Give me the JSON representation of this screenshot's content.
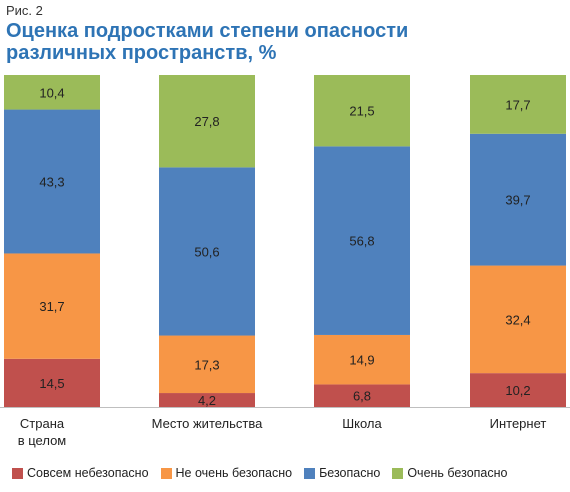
{
  "figure_label": "Рис. 2",
  "title": "Оценка подростками степени опасности различных пространств, %",
  "chart_data": {
    "type": "bar",
    "stacked": true,
    "percent_stacked": true,
    "categories": [
      "Страна в целом",
      "Место жительства",
      "Школа",
      "Интернет"
    ],
    "series": [
      {
        "name": "Совсем небезопасно",
        "color": "#c0504d",
        "values": [
          14.5,
          4.2,
          6.8,
          10.2
        ]
      },
      {
        "name": "Не очень безопасно",
        "color": "#f79646",
        "values": [
          31.7,
          17.3,
          14.9,
          32.4
        ]
      },
      {
        "name": "Безопасно",
        "color": "#4f81bd",
        "values": [
          43.3,
          50.6,
          56.8,
          39.7
        ]
      },
      {
        "name": "Очень безопасно",
        "color": "#9bbb59",
        "values": [
          10.4,
          27.8,
          21.5,
          17.7
        ]
      }
    ],
    "value_labels": [
      [
        "14,5",
        "4,2",
        "6,8",
        "10,2"
      ],
      [
        "31,7",
        "17,3",
        "14,9",
        "32,4"
      ],
      [
        "43,3",
        "50,6",
        "56,8",
        "39,7"
      ],
      [
        "10,4",
        "27,8",
        "21,5",
        "17,7"
      ]
    ],
    "category_labels": [
      [
        "Страна",
        "в целом"
      ],
      [
        "Место жительства"
      ],
      [
        "Школа"
      ],
      [
        "Интернет"
      ]
    ],
    "legend_position": "bottom",
    "grid": false
  }
}
